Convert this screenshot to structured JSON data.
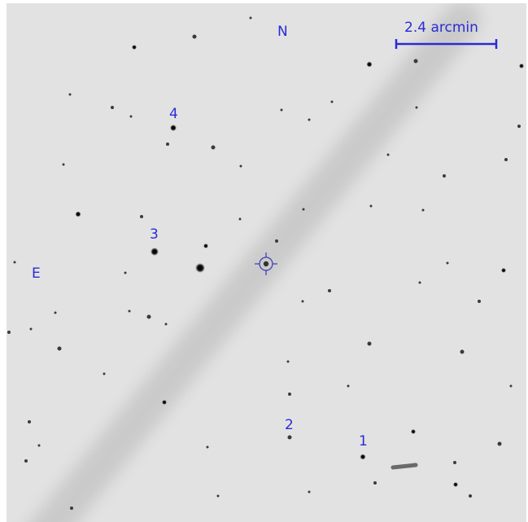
{
  "compass": {
    "north": "N",
    "east": "E"
  },
  "scale_bar": {
    "label": "2.4 arcmin"
  },
  "star_labels": [
    "1",
    "2",
    "3",
    "4"
  ],
  "colors": {
    "annotation": "#2b2bd6",
    "sky": "#e2e2e2",
    "star": "#111111"
  },
  "marker": {
    "icon": "crosshair-target-icon"
  }
}
